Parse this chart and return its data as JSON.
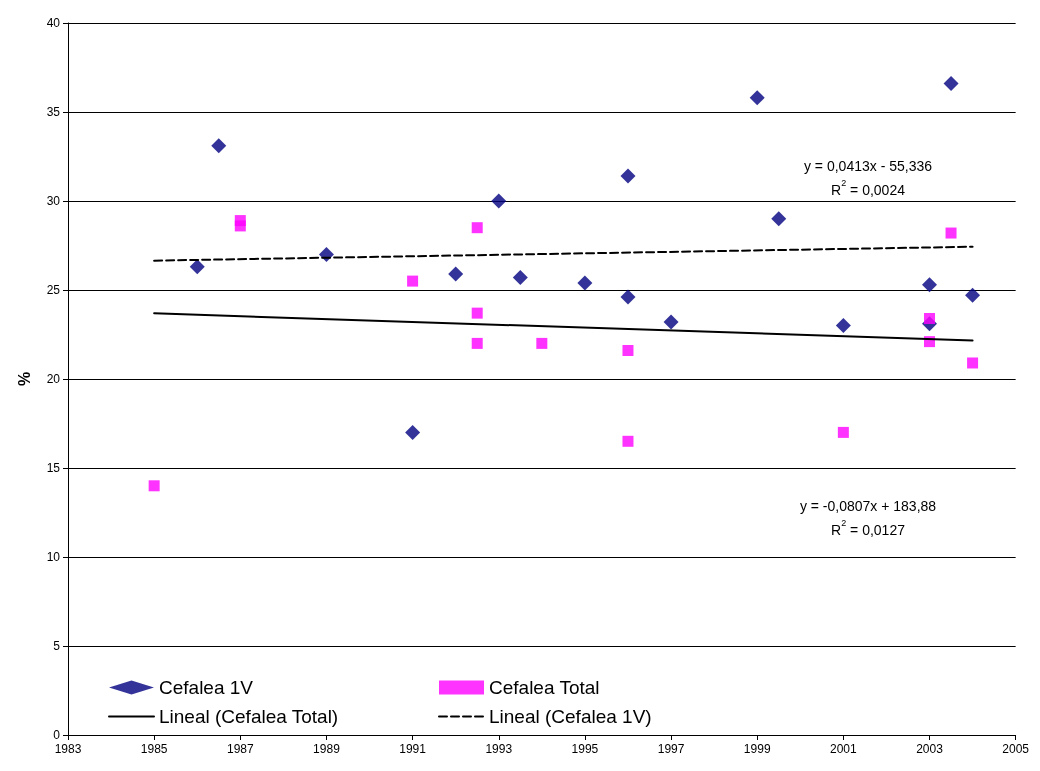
{
  "chart_data": {
    "type": "scatter",
    "ylabel": "%",
    "xlim": [
      1983,
      2005
    ],
    "xticks": [
      1983,
      1985,
      1987,
      1989,
      1991,
      1993,
      1995,
      1997,
      1999,
      2001,
      2003,
      2005
    ],
    "ylim": [
      0,
      40
    ],
    "yticks": [
      0,
      5,
      10,
      15,
      20,
      25,
      30,
      35,
      40
    ],
    "grid": "y",
    "legend": "bottom left",
    "series": [
      {
        "name": "Cefalea 1V",
        "marker": "diamond",
        "color": "#000080",
        "x": [
          1986,
          1986.5,
          1989,
          1991,
          1992,
          1993,
          1993.5,
          1995,
          1996,
          1996,
          1997,
          1999,
          1999.5,
          2001,
          2003,
          2003,
          2003.5,
          2004
        ],
        "values": [
          26.3,
          33.1,
          27.0,
          17.0,
          25.9,
          30.0,
          25.7,
          25.4,
          31.4,
          24.6,
          23.2,
          35.8,
          29.0,
          23.0,
          25.3,
          23.1,
          36.6,
          24.7
        ]
      },
      {
        "name": "Cefalea Total",
        "marker": "square",
        "color": "#ff00ff",
        "x": [
          1985,
          1987,
          1987,
          1991,
          1992.5,
          1992.5,
          1992.5,
          1994,
          1996,
          1996,
          2001,
          2003,
          2003,
          2003.5,
          2004
        ],
        "values": [
          14.0,
          28.9,
          28.6,
          25.5,
          28.5,
          23.7,
          22.0,
          22.0,
          21.6,
          16.5,
          17.0,
          23.4,
          22.1,
          28.2,
          20.9
        ]
      },
      {
        "name": "Lineal (Cefalea Total)",
        "type": "line",
        "marker": "none",
        "line_style": "solid",
        "color": "#000000",
        "x": [
          1985,
          2004
        ],
        "values": [
          23.69,
          22.16
        ]
      },
      {
        "name": "Lineal (Cefalea 1V)",
        "type": "line",
        "marker": "none",
        "line_style": "dashed",
        "color": "#000000",
        "x": [
          1985,
          2004
        ],
        "values": [
          26.65,
          27.43
        ]
      }
    ],
    "annotations": [
      "y = 0,0413x - 55,336\nR$^{2}$ = 0,0024",
      "y = -0,0807x + 183,88\nR$^{2}$ = 0,0127"
    ]
  }
}
